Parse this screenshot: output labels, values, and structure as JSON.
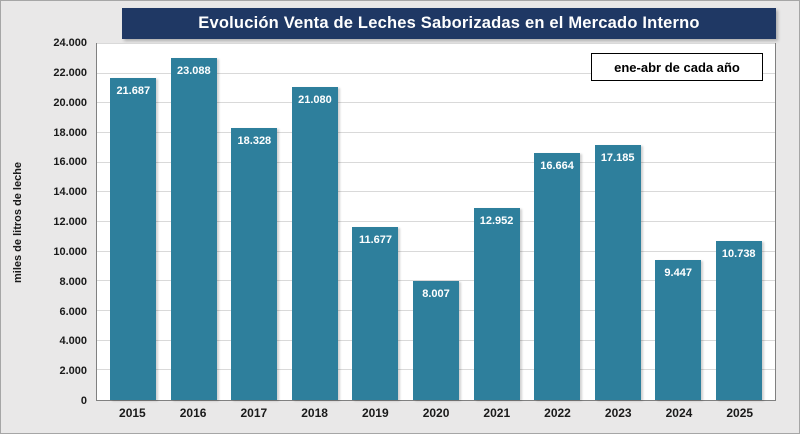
{
  "chart": {
    "title": "Evolución Venta de Leches Saborizadas en el Mercado Interno",
    "legend": "ene-abr de cada año",
    "ylabel": "miles de litros de leche"
  },
  "colors": {
    "title-bg": "#1F3864",
    "bar": "#2E7F9C",
    "bg": "#E9E8E8"
  },
  "chart_data": {
    "type": "bar",
    "title": "Evolución Venta de Leches Saborizadas en el Mercado Interno",
    "xlabel": "",
    "ylabel": "miles de litros de leche",
    "categories": [
      "2015",
      "2016",
      "2017",
      "2018",
      "2019",
      "2020",
      "2021",
      "2022",
      "2023",
      "2024",
      "2025"
    ],
    "values": [
      21687,
      23088,
      18328,
      21080,
      11677,
      8007,
      12952,
      16664,
      17185,
      9447,
      10738
    ],
    "labels": [
      "21.687",
      "23.088",
      "18.328",
      "21.080",
      "11.677",
      "8.007",
      "12.952",
      "16.664",
      "17.185",
      "9.447",
      "10.738"
    ],
    "ylim": [
      0,
      24000
    ],
    "ytick_step": 2000,
    "ytick_labels": [
      "0",
      "2.000",
      "4.000",
      "6.000",
      "8.000",
      "10.000",
      "12.000",
      "14.000",
      "16.000",
      "18.000",
      "20.000",
      "22.000",
      "24.000"
    ],
    "grid": true,
    "legend": {
      "text": "ene-abr de cada año",
      "position": "top-right"
    },
    "bar_color": "#2E7F9C",
    "value_label_color": "#FFFFFF"
  }
}
